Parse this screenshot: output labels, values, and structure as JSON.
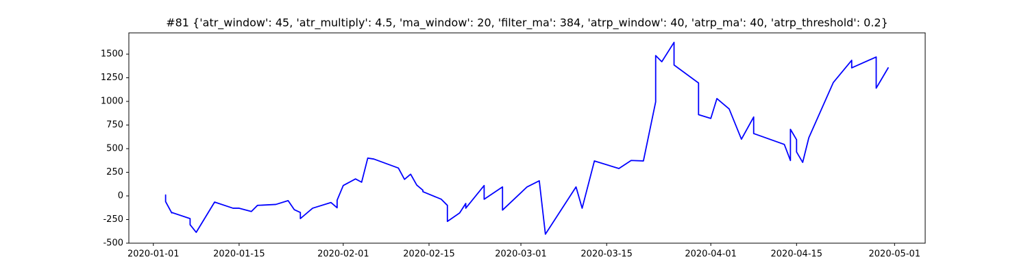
{
  "chart_data": {
    "type": "line",
    "title": "#81 {'atr_window': 45, 'atr_multiply': 4.5, 'ma_window': 20, 'filter_ma': 384, 'atrp_window': 40, 'atrp_ma': 40, 'atrp_threshold': 0.2}",
    "x": [
      "2020-01-03",
      "2020-01-03",
      "2020-01-03",
      "2020-01-04",
      "2020-01-04",
      "2020-01-07",
      "2020-01-07",
      "2020-01-08",
      "2020-01-11",
      "2020-01-14",
      "2020-01-15",
      "2020-01-17",
      "2020-01-18",
      "2020-01-21",
      "2020-01-23",
      "2020-01-24",
      "2020-01-25",
      "2020-01-25",
      "2020-01-27",
      "2020-01-30",
      "2020-01-31",
      "2020-01-31",
      "2020-02-01",
      "2020-02-03",
      "2020-02-04",
      "2020-02-05",
      "2020-02-06",
      "2020-02-10",
      "2020-02-11",
      "2020-02-12",
      "2020-02-13",
      "2020-02-14",
      "2020-02-14",
      "2020-02-17",
      "2020-02-18",
      "2020-02-18",
      "2020-02-18",
      "2020-02-20",
      "2020-02-21",
      "2020-02-21",
      "2020-02-24",
      "2020-02-24",
      "2020-02-27",
      "2020-02-27",
      "2020-03-02",
      "2020-03-04",
      "2020-03-05",
      "2020-03-10",
      "2020-03-11",
      "2020-03-13",
      "2020-03-17",
      "2020-03-19",
      "2020-03-21",
      "2020-03-23",
      "2020-03-23",
      "2020-03-24",
      "2020-03-26",
      "2020-03-26",
      "2020-03-30",
      "2020-03-30",
      "2020-04-01",
      "2020-04-02",
      "2020-04-04",
      "2020-04-06",
      "2020-04-08",
      "2020-04-08",
      "2020-04-13",
      "2020-04-14",
      "2020-04-14",
      "2020-04-15",
      "2020-04-15",
      "2020-04-16",
      "2020-04-17",
      "2020-04-21",
      "2020-04-24",
      "2020-04-24",
      "2020-04-28",
      "2020-04-28",
      "2020-04-28",
      "2020-04-30"
    ],
    "series": [
      {
        "color": "#0000ff",
        "values": [
          0,
          10,
          -60,
          -180,
          -175,
          -240,
          -305,
          -385,
          -65,
          -130,
          -130,
          -165,
          -100,
          -90,
          -50,
          -145,
          -175,
          -240,
          -130,
          -70,
          -125,
          -45,
          110,
          180,
          145,
          400,
          390,
          295,
          175,
          230,
          115,
          60,
          45,
          -35,
          -100,
          -165,
          -270,
          -180,
          -80,
          -130,
          110,
          -35,
          95,
          -150,
          95,
          160,
          -405,
          95,
          -130,
          370,
          290,
          375,
          370,
          995,
          1485,
          1420,
          1625,
          1385,
          1195,
          860,
          820,
          1030,
          920,
          600,
          835,
          660,
          545,
          375,
          705,
          595,
          465,
          355,
          615,
          1200,
          1435,
          1355,
          1470,
          1370,
          1140,
          1360
        ]
      }
    ],
    "xlim": [
      "2019-12-28",
      "2020-05-06"
    ],
    "xticks": [
      "2020-01-01",
      "2020-01-15",
      "2020-02-01",
      "2020-02-15",
      "2020-03-01",
      "2020-03-15",
      "2020-04-01",
      "2020-04-15",
      "2020-05-01"
    ],
    "ylim": [
      -500,
      1725
    ],
    "yticks": [
      -500,
      -250,
      0,
      250,
      500,
      750,
      1000,
      1250,
      1500
    ],
    "grid": false
  }
}
